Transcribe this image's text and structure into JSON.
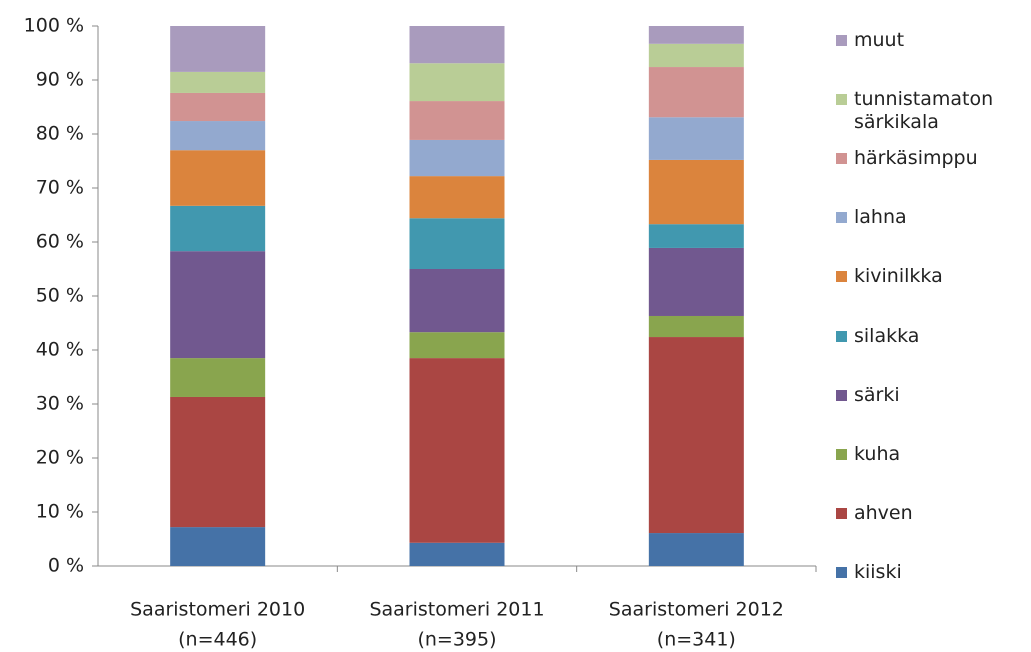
{
  "chart_data": {
    "type": "stacked_bar",
    "categories": [
      [
        "Saaristomeri 2010",
        "(n=446)"
      ],
      [
        "Saaristomeri 2011",
        "(n=395)"
      ],
      [
        "Saaristomeri 2012",
        "(n=341)"
      ]
    ],
    "series": [
      {
        "name": "kiiski",
        "color": "#4572a7",
        "values": [
          7.2,
          4.3,
          6.1
        ]
      },
      {
        "name": "ahven",
        "color": "#aa4643",
        "values": [
          24.1,
          34.2,
          36.3
        ]
      },
      {
        "name": "kuha",
        "color": "#89a54e",
        "values": [
          7.2,
          4.8,
          3.9
        ]
      },
      {
        "name": "särki",
        "color": "#71588f",
        "values": [
          19.8,
          11.7,
          12.6
        ]
      },
      {
        "name": "silakka",
        "color": "#4198af",
        "values": [
          8.4,
          9.4,
          4.4
        ]
      },
      {
        "name": "kivinilkka",
        "color": "#db843d",
        "values": [
          10.3,
          7.8,
          11.9
        ]
      },
      {
        "name": "lahna",
        "color": "#93a9cf",
        "values": [
          5.4,
          6.7,
          7.9
        ]
      },
      {
        "name": "härkäsimppu",
        "color": "#d19392",
        "values": [
          5.2,
          7.2,
          9.3
        ]
      },
      {
        "name": "tunnistamaton särkikala",
        "color": "#b9cd96",
        "values": [
          3.9,
          7.0,
          4.3
        ]
      },
      {
        "name": "muut",
        "color": "#a99bbd",
        "values": [
          8.5,
          6.9,
          3.3
        ]
      }
    ],
    "ylim": [
      0,
      100
    ],
    "yticks": [
      {
        "value": 0,
        "label": "0 %"
      },
      {
        "value": 10,
        "label": "10 %"
      },
      {
        "value": 20,
        "label": "20 %"
      },
      {
        "value": 30,
        "label": "30 %"
      },
      {
        "value": 40,
        "label": "40 %"
      },
      {
        "value": 50,
        "label": "50 %"
      },
      {
        "value": 60,
        "label": "60 %"
      },
      {
        "value": 70,
        "label": "70 %"
      },
      {
        "value": 80,
        "label": "80 %"
      },
      {
        "value": 90,
        "label": "90 %"
      },
      {
        "value": 100,
        "label": "100 %"
      }
    ],
    "grid": false,
    "legend": "right"
  }
}
